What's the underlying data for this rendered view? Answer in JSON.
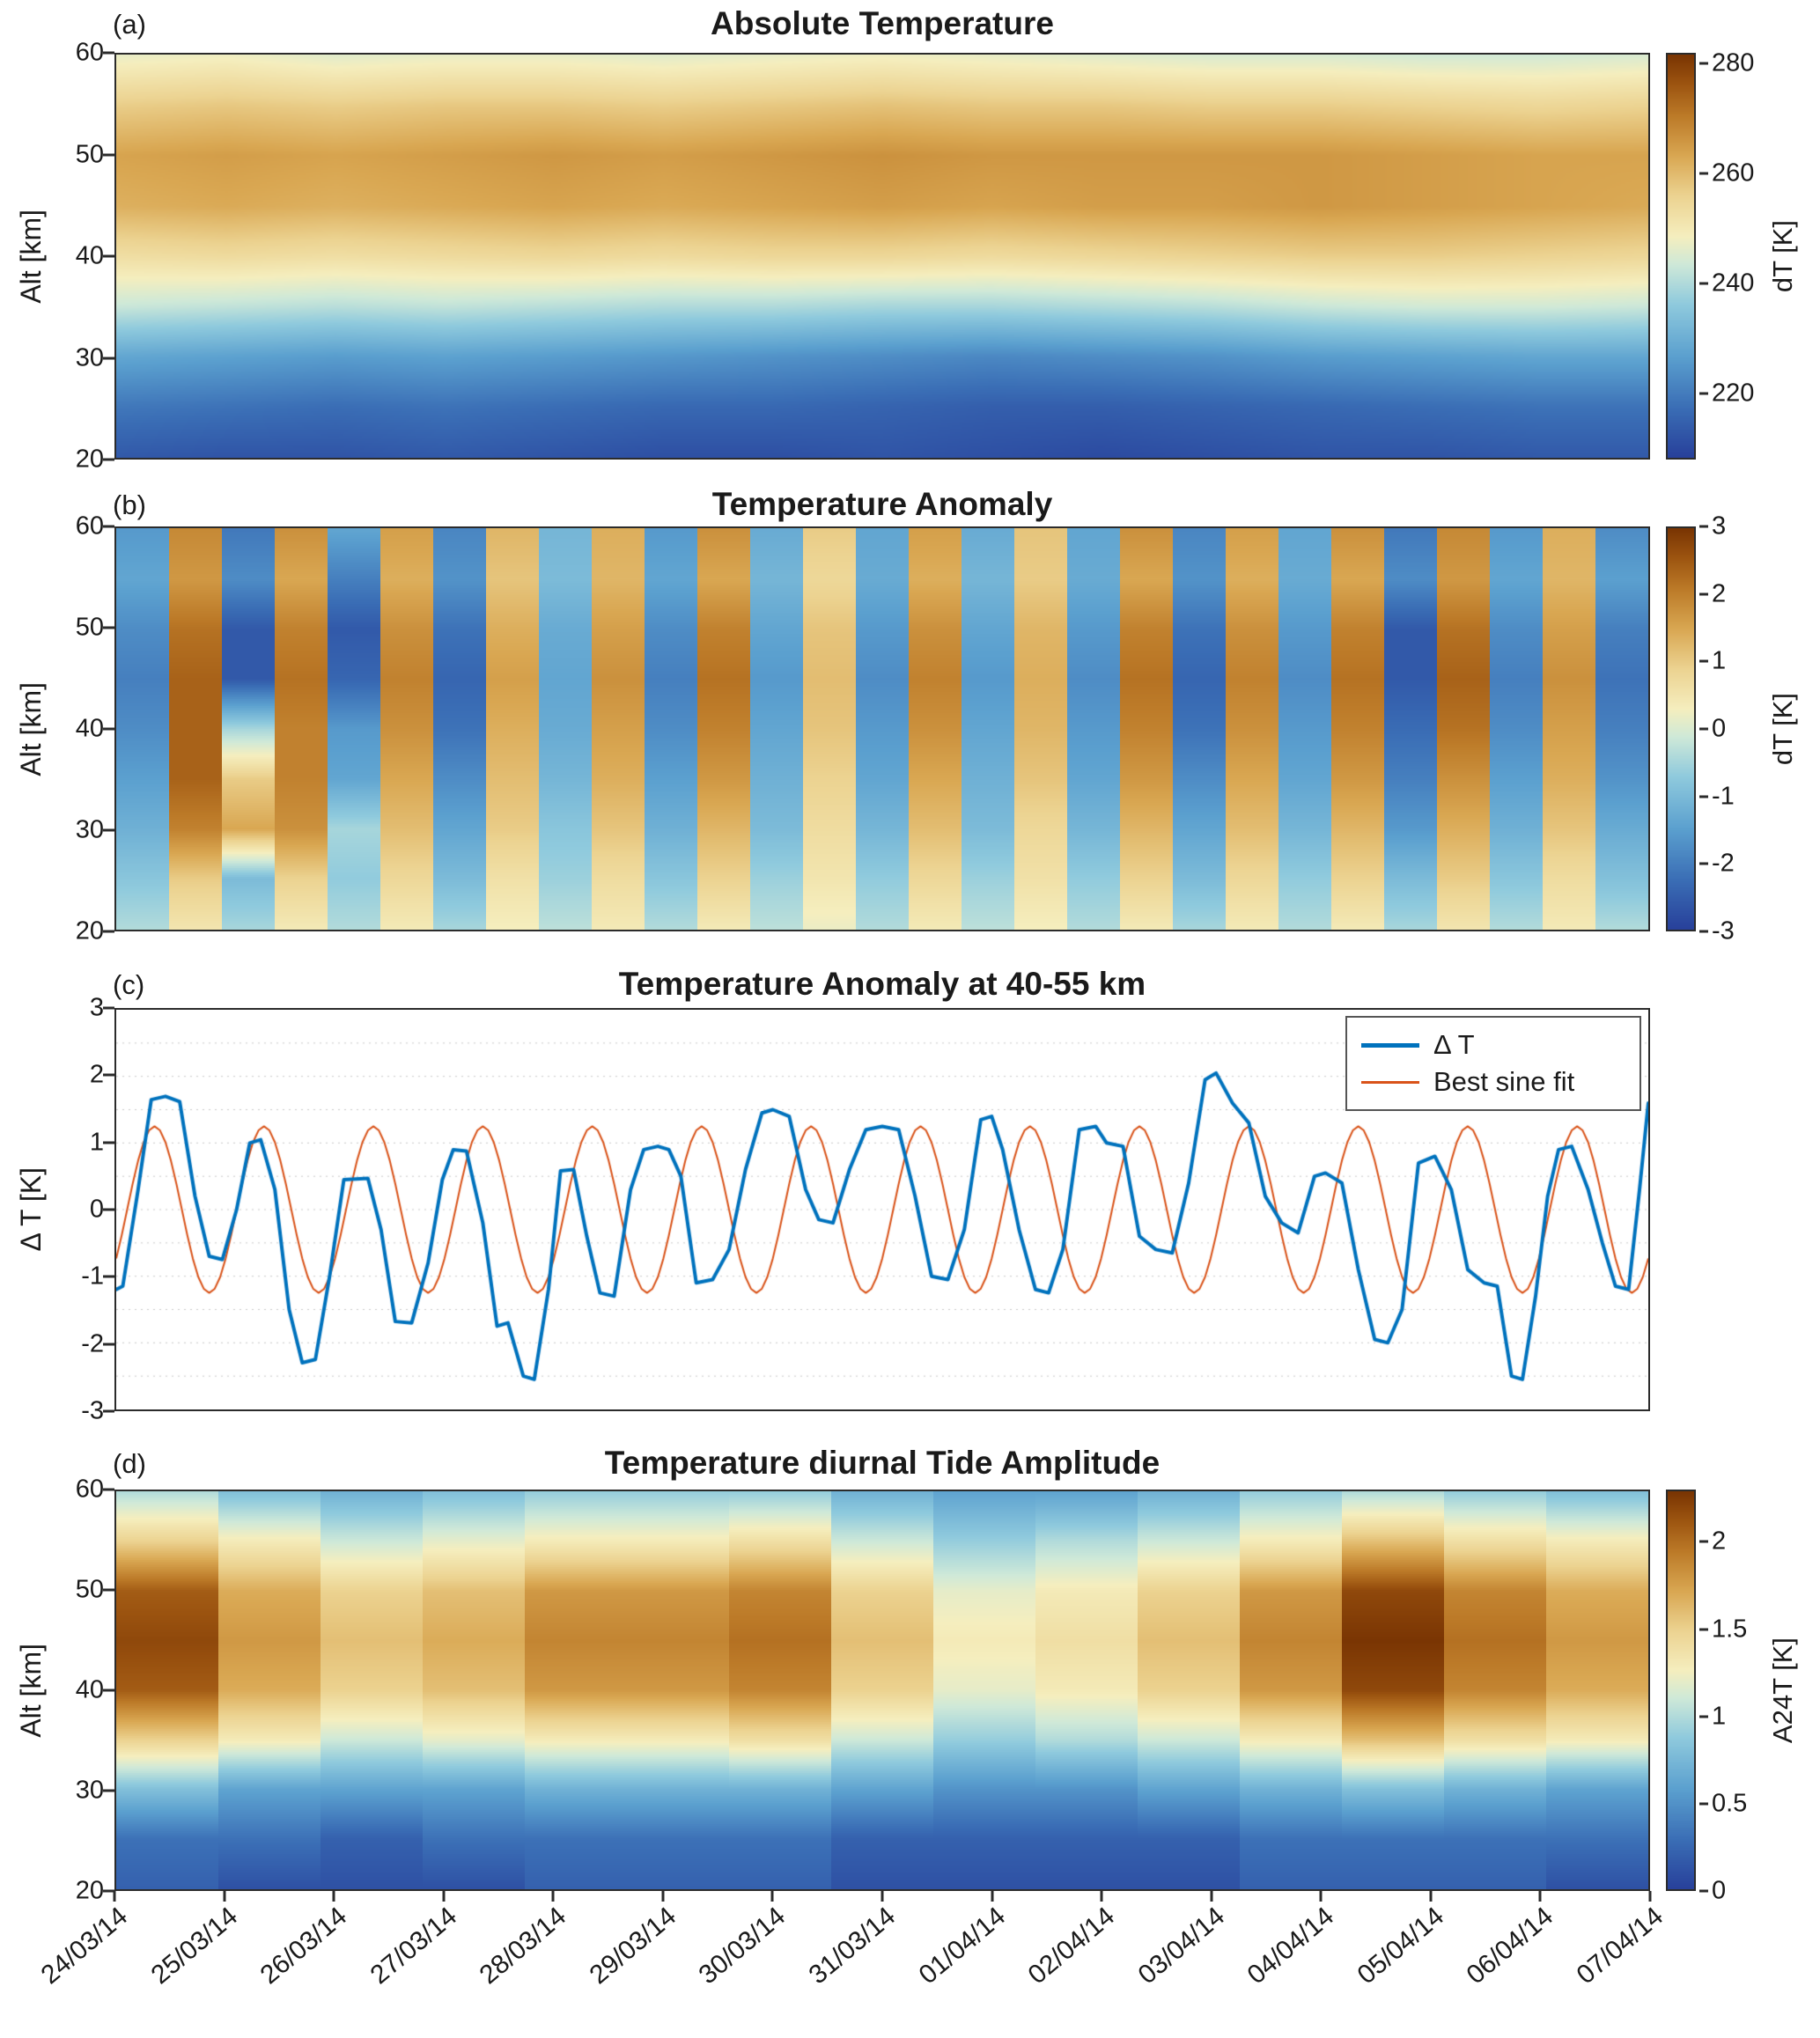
{
  "page": {
    "background": "#ffffff"
  },
  "colormap": {
    "stops": [
      [
        0.0,
        "#28419b"
      ],
      [
        0.12,
        "#3a6db5"
      ],
      [
        0.25,
        "#5ba0cf"
      ],
      [
        0.38,
        "#8fcadd"
      ],
      [
        0.48,
        "#cfe9d8"
      ],
      [
        0.55,
        "#f5eebe"
      ],
      [
        0.65,
        "#ecd391"
      ],
      [
        0.75,
        "#d9a752"
      ],
      [
        0.85,
        "#bc7a28"
      ],
      [
        0.93,
        "#9c5410"
      ],
      [
        1.0,
        "#7a3503"
      ]
    ]
  },
  "chart_data": [
    {
      "id": "a",
      "type": "heatmap",
      "panel_tag": "(a)",
      "title": "Absolute Temperature",
      "ylabel": "Alt [km]",
      "y_ticks": [
        20,
        30,
        40,
        50,
        60
      ],
      "y_range": [
        20,
        60
      ],
      "x_range_days": [
        0,
        14
      ],
      "x_mode": "smooth",
      "altitudes": [
        20,
        25,
        30,
        35,
        40,
        45,
        50,
        55,
        60
      ],
      "vmin": 208,
      "vmax": 282,
      "colorbar_label": "dT [K]",
      "colorbar_ticks": [
        220,
        240,
        260,
        280
      ],
      "values": [
        [
          213,
          212,
          212,
          213,
          212,
          211,
          211,
          212,
          211,
          210,
          211,
          212,
          212,
          213,
          213
        ],
        [
          219,
          218,
          217,
          218,
          217,
          216,
          216,
          215,
          214,
          214,
          215,
          216,
          217,
          218,
          218
        ],
        [
          228,
          227,
          226,
          227,
          226,
          225,
          224,
          223,
          222,
          223,
          224,
          226,
          227,
          228,
          228
        ],
        [
          243,
          242,
          241,
          242,
          241,
          240,
          240,
          239,
          239,
          240,
          241,
          243,
          244,
          244,
          243
        ],
        [
          253,
          254,
          253,
          254,
          255,
          254,
          255,
          255,
          254,
          255,
          256,
          257,
          257,
          256,
          255
        ],
        [
          262,
          263,
          262,
          263,
          264,
          263,
          264,
          265,
          264,
          265,
          265,
          266,
          265,
          264,
          263
        ],
        [
          264,
          265,
          264,
          265,
          266,
          265,
          266,
          267,
          266,
          266,
          266,
          266,
          265,
          264,
          264
        ],
        [
          257,
          258,
          257,
          258,
          258,
          257,
          258,
          259,
          258,
          258,
          257,
          257,
          256,
          255,
          256
        ],
        [
          247,
          248,
          246,
          247,
          247,
          246,
          247,
          248,
          247,
          246,
          245,
          245,
          244,
          244,
          245
        ]
      ]
    },
    {
      "id": "b",
      "type": "heatmap",
      "panel_tag": "(b)",
      "title": "Temperature Anomaly",
      "ylabel": "Alt [km]",
      "y_ticks": [
        20,
        30,
        40,
        50,
        60
      ],
      "y_range": [
        20,
        60
      ],
      "x_range_days": [
        0,
        14
      ],
      "x_mode": "step",
      "altitudes": [
        20,
        25,
        30,
        35,
        40,
        45,
        50,
        55,
        60
      ],
      "vmin": -3,
      "vmax": 3,
      "colorbar_label": "dT [K]",
      "colorbar_ticks": [
        -3,
        -2,
        -1,
        0,
        1,
        2,
        3
      ],
      "values": [
        [
          -0.4,
          0.5,
          -0.5,
          0.4,
          -0.4,
          0.4,
          -0.5,
          0.3,
          -0.3,
          0.4,
          -0.4,
          0.4,
          -0.3,
          0.2,
          -0.4,
          0.4,
          -0.3,
          0.3,
          -0.4,
          0.4,
          -0.5,
          0.4,
          -0.4,
          0.4,
          -0.5,
          0.5,
          -0.4,
          0.4,
          -0.4
        ],
        [
          -0.8,
          1.0,
          -1.0,
          0.9,
          -0.7,
          0.8,
          -1.0,
          0.6,
          -0.6,
          0.7,
          -0.8,
          0.9,
          -0.6,
          0.5,
          -0.7,
          0.8,
          -0.6,
          0.6,
          -0.7,
          0.9,
          -1.0,
          0.8,
          -0.7,
          0.9,
          -1.0,
          1.0,
          -0.8,
          0.7,
          -0.9
        ],
        [
          -1.2,
          2.0,
          1.5,
          1.8,
          -0.5,
          1.2,
          -1.4,
          1.0,
          -0.8,
          1.1,
          -1.2,
          1.3,
          -1.0,
          0.7,
          -1.1,
          1.2,
          -1.0,
          0.8,
          -1.1,
          1.3,
          -1.4,
          1.2,
          -1.1,
          1.3,
          -1.6,
          1.4,
          -1.2,
          1.1,
          -1.3
        ],
        [
          -1.5,
          2.4,
          1.0,
          2.0,
          -1.4,
          1.5,
          -1.8,
          1.2,
          -1.1,
          1.4,
          -1.5,
          1.7,
          -1.2,
          0.9,
          -1.4,
          1.5,
          -1.2,
          1.1,
          -1.4,
          1.7,
          -1.8,
          1.5,
          -1.4,
          1.7,
          -2.0,
          1.8,
          -1.5,
          1.4,
          -1.7
        ],
        [
          -1.8,
          2.4,
          -0.5,
          2.0,
          -1.6,
          1.8,
          -2.2,
          1.4,
          -1.3,
          1.6,
          -1.8,
          2.0,
          -1.4,
          1.1,
          -1.6,
          1.8,
          -1.4,
          1.3,
          -1.6,
          2.0,
          -2.2,
          1.8,
          -1.6,
          2.0,
          -2.3,
          2.2,
          -1.8,
          1.6,
          -2.0
        ],
        [
          -2.0,
          2.4,
          -2.6,
          2.2,
          -2.4,
          2.0,
          -2.4,
          1.6,
          -1.4,
          1.8,
          -2.0,
          2.2,
          -1.6,
          1.2,
          -1.8,
          2.0,
          -1.6,
          1.4,
          -1.8,
          2.2,
          -2.4,
          2.0,
          -1.8,
          2.2,
          -2.6,
          2.4,
          -2.0,
          1.8,
          -2.2
        ],
        [
          -1.8,
          2.2,
          -2.6,
          2.0,
          -2.6,
          1.8,
          -2.2,
          1.4,
          -1.3,
          1.6,
          -1.8,
          2.0,
          -1.4,
          1.1,
          -1.6,
          1.8,
          -1.4,
          1.3,
          -1.6,
          2.0,
          -2.2,
          1.8,
          -1.6,
          2.0,
          -2.6,
          2.2,
          -1.8,
          1.6,
          -2.0
        ],
        [
          -1.4,
          1.7,
          -1.8,
          1.5,
          -2.0,
          1.4,
          -1.7,
          1.1,
          -1.0,
          1.3,
          -1.4,
          1.5,
          -1.1,
          0.8,
          -1.3,
          1.4,
          -1.1,
          1.0,
          -1.3,
          1.5,
          -1.7,
          1.4,
          -1.3,
          1.5,
          -1.8,
          1.7,
          -1.4,
          1.3,
          -1.5
        ],
        [
          -1.6,
          1.9,
          -2.1,
          1.8,
          -1.4,
          1.6,
          -1.9,
          1.3,
          -1.1,
          1.4,
          -1.6,
          1.8,
          -1.3,
          1.0,
          -1.4,
          1.6,
          -1.3,
          1.1,
          -1.4,
          1.8,
          -1.9,
          1.6,
          -1.4,
          1.8,
          -2.1,
          1.9,
          -1.6,
          1.4,
          -1.8
        ]
      ]
    },
    {
      "id": "c",
      "type": "line",
      "panel_tag": "(c)",
      "title": "Temperature Anomaly at 40-55 km",
      "ylabel": "Δ T [K]",
      "ylim": [
        -3,
        3
      ],
      "y_ticks": [
        -3,
        -2,
        -1,
        0,
        1,
        2,
        3
      ],
      "x_range": [
        0,
        14
      ],
      "grid": {
        "y_step": 0.5,
        "style": "dotted",
        "color": "#c9c9c9"
      },
      "legend_position": "top-right",
      "series": [
        {
          "name": "Δ T",
          "color": "#0072BD",
          "line_width": 4,
          "points": [
            [
              0,
              -1.2
            ],
            [
              0.06,
              -1.15
            ],
            [
              0.2,
              0.3
            ],
            [
              0.32,
              1.65
            ],
            [
              0.45,
              1.7
            ],
            [
              0.58,
              1.62
            ],
            [
              0.72,
              0.2
            ],
            [
              0.85,
              -0.7
            ],
            [
              0.97,
              -0.75
            ],
            [
              1.1,
              0.0
            ],
            [
              1.22,
              1.0
            ],
            [
              1.32,
              1.05
            ],
            [
              1.45,
              0.3
            ],
            [
              1.58,
              -1.5
            ],
            [
              1.7,
              -2.3
            ],
            [
              1.82,
              -2.25
            ],
            [
              1.95,
              -1.0
            ],
            [
              2.08,
              0.45
            ],
            [
              2.3,
              0.47
            ],
            [
              2.42,
              -0.3
            ],
            [
              2.55,
              -1.68
            ],
            [
              2.7,
              -1.7
            ],
            [
              2.85,
              -0.8
            ],
            [
              2.98,
              0.45
            ],
            [
              3.08,
              0.9
            ],
            [
              3.2,
              0.88
            ],
            [
              3.35,
              -0.2
            ],
            [
              3.48,
              -1.75
            ],
            [
              3.58,
              -1.7
            ],
            [
              3.72,
              -2.5
            ],
            [
              3.82,
              -2.55
            ],
            [
              3.95,
              -1.2
            ],
            [
              4.06,
              0.58
            ],
            [
              4.18,
              0.6
            ],
            [
              4.3,
              -0.4
            ],
            [
              4.42,
              -1.25
            ],
            [
              4.55,
              -1.3
            ],
            [
              4.7,
              0.3
            ],
            [
              4.82,
              0.9
            ],
            [
              4.95,
              0.95
            ],
            [
              5.05,
              0.9
            ],
            [
              5.16,
              0.5
            ],
            [
              5.3,
              -1.1
            ],
            [
              5.45,
              -1.05
            ],
            [
              5.6,
              -0.6
            ],
            [
              5.75,
              0.6
            ],
            [
              5.9,
              1.45
            ],
            [
              6.0,
              1.5
            ],
            [
              6.15,
              1.4
            ],
            [
              6.3,
              0.3
            ],
            [
              6.42,
              -0.15
            ],
            [
              6.55,
              -0.2
            ],
            [
              6.7,
              0.6
            ],
            [
              6.85,
              1.2
            ],
            [
              7.0,
              1.25
            ],
            [
              7.15,
              1.2
            ],
            [
              7.3,
              0.2
            ],
            [
              7.45,
              -1.0
            ],
            [
              7.6,
              -1.05
            ],
            [
              7.75,
              -0.3
            ],
            [
              7.9,
              1.35
            ],
            [
              8.0,
              1.4
            ],
            [
              8.1,
              0.9
            ],
            [
              8.25,
              -0.3
            ],
            [
              8.4,
              -1.2
            ],
            [
              8.52,
              -1.25
            ],
            [
              8.65,
              -0.6
            ],
            [
              8.8,
              1.2
            ],
            [
              8.95,
              1.25
            ],
            [
              9.05,
              1.0
            ],
            [
              9.2,
              0.95
            ],
            [
              9.35,
              -0.4
            ],
            [
              9.5,
              -0.6
            ],
            [
              9.65,
              -0.65
            ],
            [
              9.8,
              0.4
            ],
            [
              9.95,
              1.95
            ],
            [
              10.05,
              2.05
            ],
            [
              10.2,
              1.6
            ],
            [
              10.35,
              1.3
            ],
            [
              10.5,
              0.2
            ],
            [
              10.65,
              -0.2
            ],
            [
              10.8,
              -0.35
            ],
            [
              10.95,
              0.5
            ],
            [
              11.05,
              0.55
            ],
            [
              11.2,
              0.4
            ],
            [
              11.35,
              -0.9
            ],
            [
              11.5,
              -1.95
            ],
            [
              11.62,
              -2.0
            ],
            [
              11.75,
              -1.5
            ],
            [
              11.9,
              0.7
            ],
            [
              12.05,
              0.8
            ],
            [
              12.2,
              0.3
            ],
            [
              12.35,
              -0.9
            ],
            [
              12.5,
              -1.1
            ],
            [
              12.62,
              -1.15
            ],
            [
              12.75,
              -2.5
            ],
            [
              12.85,
              -2.55
            ],
            [
              12.97,
              -1.3
            ],
            [
              13.08,
              0.2
            ],
            [
              13.18,
              0.9
            ],
            [
              13.3,
              0.95
            ],
            [
              13.45,
              0.3
            ],
            [
              13.58,
              -0.5
            ],
            [
              13.7,
              -1.15
            ],
            [
              13.82,
              -1.2
            ],
            [
              13.92,
              0.3
            ],
            [
              14,
              1.6
            ]
          ]
        },
        {
          "name": "Best sine fit",
          "color": "#D95319",
          "line_width": 2,
          "sine": {
            "amplitude": 1.25,
            "period": 1,
            "phase_shift": 0.1,
            "t_start": 0,
            "t_end": 14,
            "dt": 0.05
          }
        }
      ]
    },
    {
      "id": "d",
      "type": "heatmap",
      "panel_tag": "(d)",
      "title": "Temperature diurnal Tide Amplitude",
      "ylabel": "Alt [km]",
      "y_ticks": [
        20,
        30,
        40,
        50,
        60
      ],
      "y_range": [
        20,
        60
      ],
      "x_range_days": [
        0,
        14
      ],
      "x_mode": "step",
      "altitudes": [
        20,
        25,
        30,
        35,
        40,
        45,
        50,
        55,
        60
      ],
      "vmin": 0,
      "vmax": 2.3,
      "colorbar_label": "A24T [K]",
      "colorbar_ticks": [
        0,
        0.5,
        1,
        1.5,
        2
      ],
      "x_tick_labels": [
        "24/03/14",
        "25/03/14",
        "26/03/14",
        "27/03/14",
        "28/03/14",
        "29/03/14",
        "30/03/14",
        "31/03/14",
        "01/04/14",
        "02/04/14",
        "03/04/14",
        "04/04/14",
        "05/04/14",
        "06/04/14",
        "07/04/14"
      ],
      "values": [
        [
          0.2,
          0.1,
          0.1,
          0.1,
          0.2,
          0.2,
          0.2,
          0.1,
          0.1,
          0.1,
          0.1,
          0.2,
          0.2,
          0.2,
          0.1
        ],
        [
          0.3,
          0.3,
          0.2,
          0.3,
          0.3,
          0.3,
          0.3,
          0.2,
          0.2,
          0.2,
          0.2,
          0.3,
          0.3,
          0.3,
          0.3
        ],
        [
          0.8,
          0.6,
          0.6,
          0.6,
          0.7,
          0.7,
          0.7,
          0.6,
          0.5,
          0.5,
          0.6,
          0.7,
          0.8,
          0.7,
          0.6
        ],
        [
          1.5,
          1.3,
          1.1,
          1.2,
          1.3,
          1.3,
          1.4,
          1.1,
          0.9,
          1.0,
          1.1,
          1.3,
          1.6,
          1.4,
          1.3
        ],
        [
          2.1,
          1.7,
          1.5,
          1.6,
          1.8,
          1.8,
          1.9,
          1.5,
          1.2,
          1.3,
          1.5,
          1.8,
          2.2,
          1.9,
          1.7
        ],
        [
          2.2,
          1.8,
          1.6,
          1.7,
          1.9,
          1.9,
          2.0,
          1.6,
          1.3,
          1.4,
          1.6,
          1.9,
          2.3,
          2.0,
          1.8
        ],
        [
          2.1,
          1.7,
          1.5,
          1.6,
          1.8,
          1.8,
          1.9,
          1.5,
          1.2,
          1.3,
          1.5,
          1.8,
          2.2,
          1.9,
          1.7
        ],
        [
          1.5,
          1.3,
          1.1,
          1.2,
          1.3,
          1.3,
          1.4,
          1.1,
          0.9,
          1.0,
          1.1,
          1.3,
          1.6,
          1.4,
          1.3
        ],
        [
          1.0,
          0.8,
          0.7,
          0.8,
          0.9,
          0.9,
          0.9,
          0.7,
          0.6,
          0.6,
          0.7,
          0.9,
          1.0,
          0.9,
          0.8
        ]
      ]
    }
  ]
}
